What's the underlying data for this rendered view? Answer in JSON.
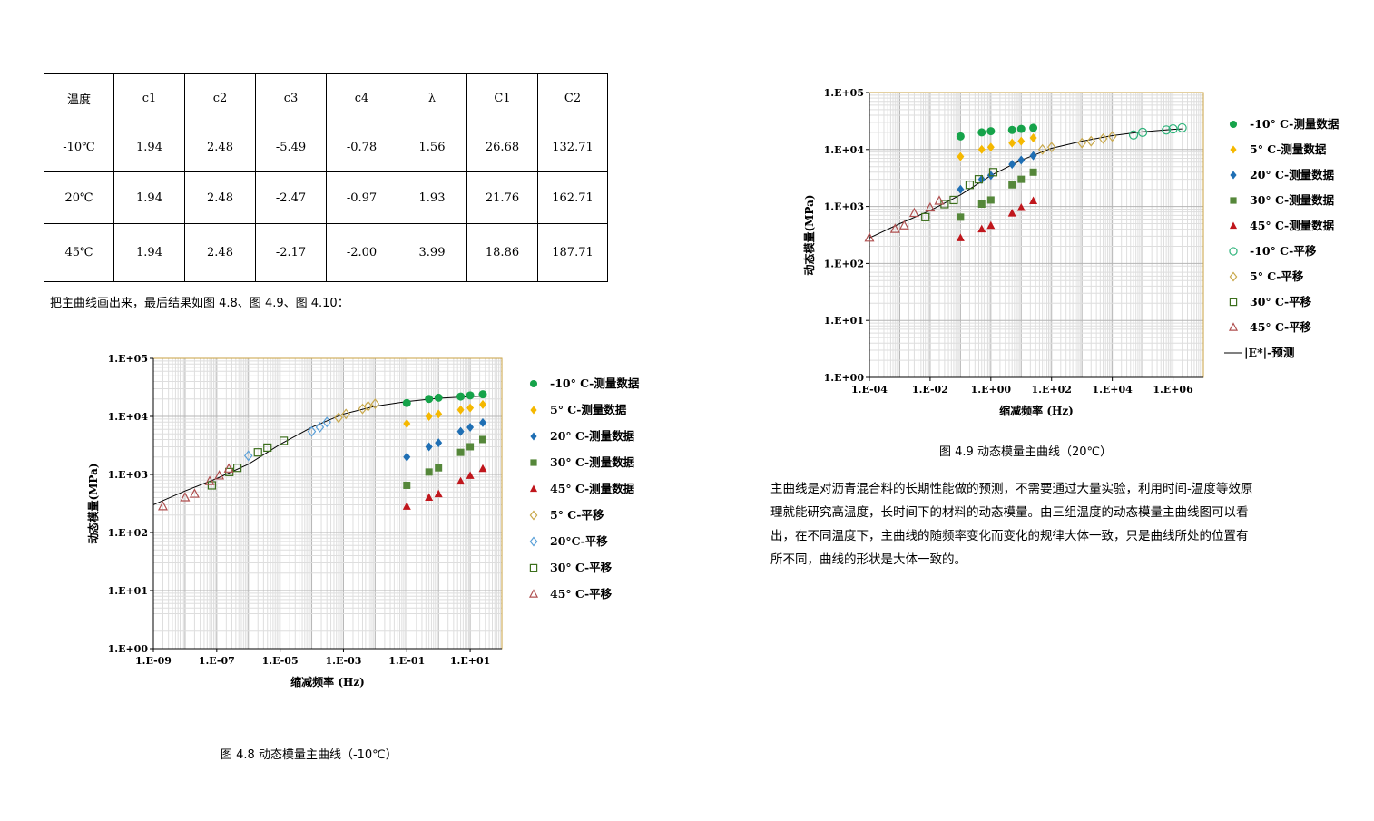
{
  "table": {
    "headers": [
      "温度",
      "c1",
      "c2",
      "c3",
      "c4",
      "λ",
      "C1",
      "C2"
    ],
    "rows": [
      [
        "-10℃",
        "1.94",
        "2.48",
        "-5.49",
        "-0.78",
        "1.56",
        "26.68",
        "132.71"
      ],
      [
        "20℃",
        "1.94",
        "2.48",
        "-2.47",
        "-0.97",
        "1.93",
        "21.76",
        "162.71"
      ],
      [
        "45℃",
        "1.94",
        "2.48",
        "-2.17",
        "-2.00",
        "3.99",
        "18.86",
        "187.71"
      ]
    ]
  },
  "intro_text": "把主曲线画出来，最后结果如图 4.8、图 4.9、图 4.10：",
  "caption_48": "图 4.8    动态模量主曲线（-10℃）",
  "caption_49": "图 4.9     动态模量主曲线（20℃）",
  "body_lines": [
    "主曲线是对沥青混合料的长期性能做的预测，不需要通过大量实验，利用时间-温度等效原",
    "理就能研究高温度，长时间下的材料的动态模量。由三组温度的动态模量主曲线图可以看",
    "出，在不同温度下，主曲线的随频率变化而变化的规律大体一致，只是曲线所处的位置有",
    "所不同，曲线的形状是大体一致的。"
  ],
  "chart_data": [
    {
      "type": "scatter",
      "title": "",
      "xlabel": "缩减频率 (Hz)",
      "ylabel": "动态模量(MPa)",
      "x_scale": "log",
      "y_scale": "log",
      "xlim": [
        1e-09,
        100.0
      ],
      "ylim": [
        1,
        100000.0
      ],
      "x_tick_labels": [
        "1.E-09",
        "1.E-07",
        "1.E-05",
        "1.E-03",
        "1.E-01",
        "1.E+01"
      ],
      "y_tick_labels": [
        "1.E+00",
        "1.E+01",
        "1.E+02",
        "1.E+03",
        "1.E+04",
        "1.E+05"
      ],
      "grid": true,
      "legend_position": "right",
      "curve": {
        "show_in_legend": false,
        "color": "#000000",
        "x": [
          1e-09,
          1e-08,
          1e-07,
          1e-06,
          1e-05,
          0.0001,
          0.001,
          0.01,
          0.1,
          1,
          10,
          40
        ],
        "y": [
          300,
          520,
          850,
          1500,
          3300,
          6500,
          11000,
          15000,
          18000,
          20500,
          22000,
          22500
        ]
      },
      "series": [
        {
          "name": "-10° C-测量数据",
          "marker": "circle",
          "filled": true,
          "color": "#16a34a",
          "x": [
            0.1,
            0.5,
            1,
            5,
            10,
            25
          ],
          "y": [
            17000,
            20000,
            21000,
            22000,
            23000,
            24000
          ]
        },
        {
          "name": "5° C-测量数据",
          "marker": "diamond",
          "filled": true,
          "color": "#f5b800",
          "x": [
            0.1,
            0.5,
            1,
            5,
            10,
            25
          ],
          "y": [
            7500,
            10000,
            11000,
            13000,
            14000,
            16000
          ]
        },
        {
          "name": "20° C-测量数据",
          "marker": "diamond",
          "filled": true,
          "color": "#1f6fb4",
          "x": [
            0.1,
            0.5,
            1,
            5,
            10,
            25
          ],
          "y": [
            2000,
            3000,
            3500,
            5500,
            6500,
            7800
          ]
        },
        {
          "name": "30° C-测量数据",
          "marker": "square",
          "filled": true,
          "color": "#55873a",
          "x": [
            0.1,
            0.5,
            1,
            5,
            10,
            25
          ],
          "y": [
            650,
            1100,
            1300,
            2400,
            3000,
            4000
          ]
        },
        {
          "name": "45° C-测量数据",
          "marker": "triangle",
          "filled": true,
          "color": "#c0161c",
          "x": [
            0.1,
            0.5,
            1,
            5,
            10,
            25
          ],
          "y": [
            280,
            400,
            460,
            760,
            950,
            1250
          ]
        },
        {
          "name": "5° C-平移",
          "marker": "diamond",
          "filled": false,
          "color": "#c9a94c",
          "x": [
            0.0007,
            0.0012,
            0.004,
            0.006,
            0.01
          ],
          "y": [
            9500,
            11000,
            13500,
            15000,
            16500
          ]
        },
        {
          "name": "20°C-平移",
          "marker": "diamond",
          "filled": false,
          "color": "#5aa0d8",
          "x": [
            1e-06,
            0.0001,
            0.00018,
            0.0003
          ],
          "y": [
            2100,
            5500,
            6500,
            8000
          ]
        },
        {
          "name": "30° C-平移",
          "marker": "square",
          "filled": false,
          "color": "#3c6f1c",
          "x": [
            7e-08,
            2.5e-07,
            4.5e-07,
            2e-06,
            4e-06,
            1.3e-05
          ],
          "y": [
            650,
            1100,
            1300,
            2400,
            2900,
            3800
          ]
        },
        {
          "name": "45° C-平移",
          "marker": "triangle",
          "filled": false,
          "color": "#b05050",
          "x": [
            2e-09,
            1e-08,
            2e-08,
            6e-08,
            1.2e-07,
            2.4e-07
          ],
          "y": [
            280,
            400,
            460,
            760,
            950,
            1250
          ]
        }
      ]
    },
    {
      "type": "scatter",
      "title": "",
      "xlabel": "缩减频率 (Hz)",
      "ylabel": "动态模量(MPa)",
      "x_scale": "log",
      "y_scale": "log",
      "xlim": [
        0.0001,
        10000000.0
      ],
      "ylim": [
        1,
        100000.0
      ],
      "x_tick_labels": [
        "1.E-04",
        "1.E-02",
        "1.E+00",
        "1.E+02",
        "1.E+04",
        "1.E+06"
      ],
      "y_tick_labels": [
        "1.E+00",
        "1.E+01",
        "1.E+02",
        "1.E+03",
        "1.E+04",
        "1.E+05"
      ],
      "grid": true,
      "legend_position": "right",
      "curve": {
        "name": "|E*|-预测",
        "show_in_legend": true,
        "color": "#000000",
        "x": [
          0.0001,
          0.001,
          0.01,
          0.1,
          1,
          10,
          100,
          1000,
          10000,
          100000,
          1000000,
          2000000
        ],
        "y": [
          280,
          500,
          850,
          1600,
          3500,
          6500,
          10500,
          14000,
          17500,
          20500,
          22500,
          23000
        ]
      },
      "series": [
        {
          "name": "-10° C-测量数据",
          "marker": "circle",
          "filled": true,
          "color": "#16a34a",
          "x": [
            0.1,
            0.5,
            1,
            5,
            10,
            25
          ],
          "y": [
            17000,
            20000,
            21000,
            22000,
            23000,
            24000
          ]
        },
        {
          "name": "5° C-测量数据",
          "marker": "diamond",
          "filled": true,
          "color": "#f5b800",
          "x": [
            0.1,
            0.5,
            1,
            5,
            10,
            25
          ],
          "y": [
            7500,
            10000,
            11000,
            13000,
            14000,
            16000
          ]
        },
        {
          "name": "20° C-测量数据",
          "marker": "diamond",
          "filled": true,
          "color": "#1f6fb4",
          "x": [
            0.1,
            0.5,
            1,
            5,
            10,
            25
          ],
          "y": [
            2000,
            3000,
            3500,
            5500,
            6500,
            7800
          ]
        },
        {
          "name": "30° C-测量数据",
          "marker": "square",
          "filled": true,
          "color": "#55873a",
          "x": [
            0.1,
            0.5,
            1,
            5,
            10,
            25
          ],
          "y": [
            650,
            1100,
            1300,
            2400,
            3000,
            4000
          ]
        },
        {
          "name": "45° C-测量数据",
          "marker": "triangle",
          "filled": true,
          "color": "#c0161c",
          "x": [
            0.1,
            0.5,
            1,
            5,
            10,
            25
          ],
          "y": [
            280,
            400,
            460,
            760,
            950,
            1250
          ]
        },
        {
          "name": "-10° C-平移",
          "marker": "circle",
          "filled": false,
          "color": "#2db37a",
          "x": [
            50000,
            100000,
            600000,
            1000000,
            2000000
          ],
          "y": [
            18000,
            20000,
            22000,
            23000,
            24000
          ]
        },
        {
          "name": "5° C-平移",
          "marker": "diamond",
          "filled": false,
          "color": "#c9a94c",
          "x": [
            50,
            100,
            1000,
            2000,
            5000,
            10000
          ],
          "y": [
            10000,
            11000,
            13000,
            14000,
            15500,
            17000
          ]
        },
        {
          "name": "30° C-平移",
          "marker": "square",
          "filled": false,
          "color": "#3c6f1c",
          "x": [
            0.007,
            0.03,
            0.06,
            0.2,
            0.4,
            1.2
          ],
          "y": [
            650,
            1100,
            1300,
            2400,
            3000,
            4000
          ]
        },
        {
          "name": "45° C-平移",
          "marker": "triangle",
          "filled": false,
          "color": "#b05050",
          "x": [
            0.0001,
            0.0007,
            0.0014,
            0.003,
            0.01,
            0.02
          ],
          "y": [
            280,
            400,
            460,
            760,
            950,
            1250
          ]
        }
      ]
    }
  ]
}
